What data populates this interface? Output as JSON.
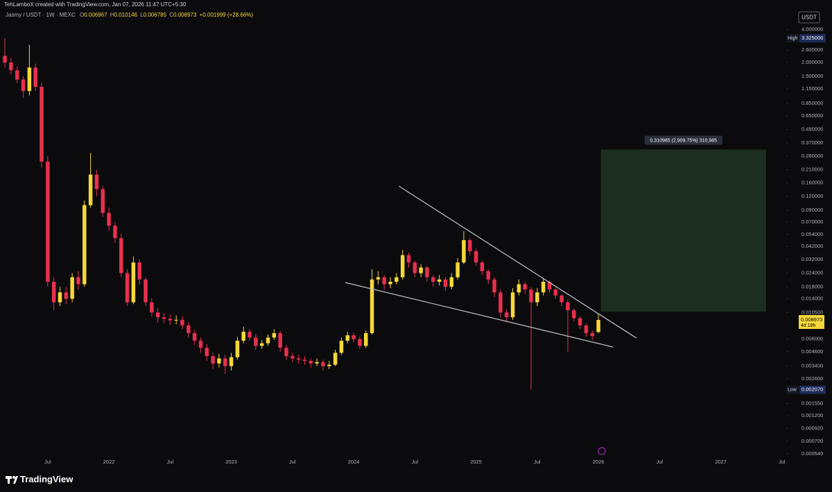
{
  "chart_data": {
    "type": "candlestick",
    "watermark": "TehLamboX created with TradingView.com, Jan 07, 2026 11:47 UTC+5:30",
    "title": "Jasmy / USDT · 1W · MEXC",
    "ohlc_letters": [
      "O",
      "H",
      "L",
      "C"
    ],
    "change_label": "+0.001999 (+28.66%)",
    "currency": "USDT",
    "brand": "TradingView",
    "log_scale": true,
    "grid": false,
    "up_color": "#f7d83a",
    "down_color": "#e8304e",
    "x": [
      2021.15,
      2021.2,
      2021.25,
      2021.3,
      2021.35,
      2021.4,
      2021.45,
      2021.5,
      2021.55,
      2021.6,
      2021.65,
      2021.7,
      2021.75,
      2021.8,
      2021.85,
      2021.9,
      2021.95,
      2022.0,
      2022.05,
      2022.1,
      2022.15,
      2022.2,
      2022.25,
      2022.3,
      2022.35,
      2022.4,
      2022.45,
      2022.5,
      2022.55,
      2022.6,
      2022.65,
      2022.7,
      2022.75,
      2022.8,
      2022.85,
      2022.9,
      2022.95,
      2023.0,
      2023.05,
      2023.1,
      2023.15,
      2023.2,
      2023.25,
      2023.3,
      2023.35,
      2023.4,
      2023.45,
      2023.5,
      2023.55,
      2023.6,
      2023.65,
      2023.7,
      2023.75,
      2023.8,
      2023.85,
      2023.9,
      2023.95,
      2024.0,
      2024.05,
      2024.1,
      2024.15,
      2024.2,
      2024.25,
      2024.3,
      2024.35,
      2024.4,
      2024.45,
      2024.5,
      2024.55,
      2024.6,
      2024.65,
      2024.7,
      2024.75,
      2024.8,
      2024.85,
      2024.9,
      2024.95,
      2025.0,
      2025.05,
      2025.1,
      2025.15,
      2025.2,
      2025.25,
      2025.3,
      2025.35,
      2025.4,
      2025.45,
      2025.5,
      2025.55,
      2025.6,
      2025.65,
      2025.7,
      2025.75,
      2025.8,
      2025.85,
      2025.9,
      2025.95,
      2026.0
    ],
    "open": [
      2.3,
      2.0,
      1.7,
      1.4,
      1.1,
      1.8,
      1.2,
      0.25,
      0.02,
      0.013,
      0.016,
      0.014,
      0.022,
      0.019,
      0.1,
      0.19,
      0.14,
      0.085,
      0.065,
      0.05,
      0.024,
      0.013,
      0.03,
      0.021,
      0.013,
      0.0105,
      0.0095,
      0.0092,
      0.0089,
      0.009,
      0.008,
      0.0068,
      0.0058,
      0.005,
      0.0042,
      0.0036,
      0.004,
      0.0034,
      0.0041,
      0.0058,
      0.007,
      0.0062,
      0.0052,
      0.0055,
      0.0062,
      0.0068,
      0.005,
      0.0042,
      0.004,
      0.0039,
      0.0038,
      0.0036,
      0.0037,
      0.0034,
      0.0035,
      0.0045,
      0.0058,
      0.0065,
      0.006,
      0.0052,
      0.0068,
      0.021,
      0.022,
      0.019,
      0.02,
      0.022,
      0.035,
      0.03,
      0.024,
      0.027,
      0.022,
      0.02,
      0.021,
      0.018,
      0.022,
      0.03,
      0.048,
      0.038,
      0.03,
      0.025,
      0.021,
      0.016,
      0.0105,
      0.0095,
      0.016,
      0.019,
      0.017,
      0.013,
      0.016,
      0.02,
      0.017,
      0.015,
      0.013,
      0.011,
      0.0093,
      0.008,
      0.0068,
      0.006967
    ],
    "high": [
      3.325,
      2.2,
      1.85,
      1.5,
      2.9,
      1.95,
      1.3,
      0.28,
      0.022,
      0.018,
      0.018,
      0.024,
      0.025,
      0.11,
      0.3,
      0.21,
      0.15,
      0.095,
      0.07,
      0.055,
      0.026,
      0.034,
      0.032,
      0.022,
      0.0142,
      0.0115,
      0.0104,
      0.0101,
      0.0099,
      0.0097,
      0.0086,
      0.0073,
      0.0062,
      0.0054,
      0.0045,
      0.0044,
      0.0043,
      0.0045,
      0.0063,
      0.0078,
      0.0074,
      0.0066,
      0.0059,
      0.0066,
      0.0074,
      0.0071,
      0.0053,
      0.0045,
      0.0043,
      0.0042,
      0.004,
      0.004,
      0.0039,
      0.0038,
      0.0048,
      0.0062,
      0.007,
      0.0069,
      0.0063,
      0.0072,
      0.026,
      0.025,
      0.023,
      0.022,
      0.024,
      0.039,
      0.037,
      0.031,
      0.029,
      0.028,
      0.023,
      0.023,
      0.022,
      0.024,
      0.033,
      0.058,
      0.05,
      0.04,
      0.031,
      0.026,
      0.022,
      0.017,
      0.0112,
      0.0175,
      0.021,
      0.02,
      0.018,
      0.0175,
      0.0215,
      0.0205,
      0.0178,
      0.0155,
      0.0138,
      0.0115,
      0.0097,
      0.0083,
      0.0072,
      0.010146
    ],
    "low": [
      1.8,
      1.55,
      1.3,
      0.95,
      1.0,
      1.1,
      0.22,
      0.018,
      0.011,
      0.012,
      0.0125,
      0.013,
      0.017,
      0.018,
      0.095,
      0.12,
      0.078,
      0.058,
      0.045,
      0.022,
      0.012,
      0.0125,
      0.019,
      0.012,
      0.0096,
      0.0085,
      0.0084,
      0.0081,
      0.0082,
      0.0074,
      0.0062,
      0.0053,
      0.0045,
      0.0038,
      0.0032,
      0.0033,
      0.0029,
      0.0031,
      0.0039,
      0.0055,
      0.0058,
      0.0048,
      0.0049,
      0.0052,
      0.0059,
      0.0046,
      0.0039,
      0.0037,
      0.0036,
      0.0035,
      0.0033,
      0.0034,
      0.0031,
      0.0032,
      0.0034,
      0.0043,
      0.0055,
      0.0056,
      0.0049,
      0.005,
      0.0066,
      0.019,
      0.017,
      0.0175,
      0.019,
      0.021,
      0.027,
      0.022,
      0.022,
      0.02,
      0.018,
      0.0185,
      0.0165,
      0.017,
      0.021,
      0.029,
      0.035,
      0.028,
      0.023,
      0.019,
      0.0145,
      0.0095,
      0.0087,
      0.009,
      0.015,
      0.0155,
      0.00207,
      0.012,
      0.015,
      0.0158,
      0.014,
      0.012,
      0.0046,
      0.0087,
      0.0074,
      0.0063,
      0.0059,
      0.006785
    ],
    "close": [
      2.0,
      1.7,
      1.4,
      1.1,
      1.8,
      1.2,
      0.25,
      0.02,
      0.013,
      0.016,
      0.014,
      0.022,
      0.019,
      0.1,
      0.19,
      0.14,
      0.085,
      0.065,
      0.05,
      0.024,
      0.013,
      0.03,
      0.021,
      0.013,
      0.0105,
      0.0095,
      0.0092,
      0.0089,
      0.009,
      0.008,
      0.0068,
      0.0058,
      0.005,
      0.0042,
      0.0036,
      0.004,
      0.0034,
      0.0041,
      0.0058,
      0.007,
      0.0062,
      0.0052,
      0.0055,
      0.0062,
      0.0068,
      0.005,
      0.0042,
      0.004,
      0.0039,
      0.0038,
      0.0036,
      0.0037,
      0.0034,
      0.0035,
      0.0045,
      0.0058,
      0.0065,
      0.006,
      0.0052,
      0.0068,
      0.021,
      0.022,
      0.019,
      0.02,
      0.022,
      0.035,
      0.03,
      0.024,
      0.027,
      0.022,
      0.02,
      0.021,
      0.018,
      0.022,
      0.03,
      0.048,
      0.038,
      0.03,
      0.025,
      0.021,
      0.016,
      0.0105,
      0.0095,
      0.016,
      0.019,
      0.017,
      0.013,
      0.016,
      0.02,
      0.017,
      0.015,
      0.013,
      0.011,
      0.0093,
      0.008,
      0.0068,
      0.0064,
      0.008973
    ],
    "xlim": [
      2021.11,
      2027.535
    ],
    "ylim": [
      0.000397,
      4.8
    ],
    "xticks": [
      {
        "value": 2021.5,
        "label": "Jul"
      },
      {
        "value": 2022,
        "label": "2022"
      },
      {
        "value": 2022.5,
        "label": "Jul"
      },
      {
        "value": 2023,
        "label": "2023"
      },
      {
        "value": 2023.5,
        "label": "Jul"
      },
      {
        "value": 2024,
        "label": "2024"
      },
      {
        "value": 2024.5,
        "label": "Jul"
      },
      {
        "value": 2025,
        "label": "2025"
      },
      {
        "value": 2025.5,
        "label": "Jul"
      },
      {
        "value": 2026,
        "label": "2026"
      },
      {
        "value": 2026.5,
        "label": "Jul"
      },
      {
        "value": 2027,
        "label": "2027"
      },
      {
        "value": 2027.5,
        "label": "Jul"
      }
    ],
    "yticks": [
      {
        "value": 4,
        "label": "4.000000"
      },
      {
        "value": 2.6,
        "label": "2.600000"
      },
      {
        "value": 2,
        "label": "2.000000"
      },
      {
        "value": 1.5,
        "label": "1.500000"
      },
      {
        "value": 1.15,
        "label": "1.150000"
      },
      {
        "value": 0.85,
        "label": "0.850000"
      },
      {
        "value": 0.65,
        "label": "0.650000"
      },
      {
        "value": 0.49,
        "label": "0.490000"
      },
      {
        "value": 0.37,
        "label": "0.370000"
      },
      {
        "value": 0.28,
        "label": "0.280000"
      },
      {
        "value": 0.21,
        "label": "0.210000"
      },
      {
        "value": 0.16,
        "label": "0.160000"
      },
      {
        "value": 0.12,
        "label": "0.120000"
      },
      {
        "value": 0.09,
        "label": "0.090000"
      },
      {
        "value": 0.07,
        "label": "0.070000"
      },
      {
        "value": 0.054,
        "label": "0.054000"
      },
      {
        "value": 0.042,
        "label": "0.042000"
      },
      {
        "value": 0.032,
        "label": "0.032000"
      },
      {
        "value": 0.024,
        "label": "0.024000"
      },
      {
        "value": 0.018,
        "label": "0.018000"
      },
      {
        "value": 0.014,
        "label": "0.014000"
      },
      {
        "value": 0.0105,
        "label": "0.010500"
      },
      {
        "value": 0.006,
        "label": "0.006000"
      },
      {
        "value": 0.0046,
        "label": "0.004600"
      },
      {
        "value": 0.0034,
        "label": "0.003400"
      },
      {
        "value": 0.0026,
        "label": "0.002600"
      },
      {
        "value": 0.00155,
        "label": "0.001550"
      },
      {
        "value": 0.0012,
        "label": "0.001200"
      },
      {
        "value": 0.00092,
        "label": "0.000920"
      },
      {
        "value": 0.0007,
        "label": "0.000700"
      },
      {
        "value": 0.00054,
        "label": "0.000540"
      }
    ],
    "high_marker": {
      "text": "High",
      "value": 3.325,
      "label": "3.325000"
    },
    "low_marker": {
      "text": "Low",
      "value": 0.00207,
      "label": "0.002070"
    },
    "last_price": {
      "value": 0.008973,
      "label": "0.008973",
      "countdown": "4d 18h"
    },
    "projection": {
      "x": [
        2026.02,
        2027.37
      ],
      "base": 0.010688,
      "change": 0.310985,
      "label": "0.310985 (2,909.75%) 310,985",
      "color": "#1c2e1f"
    },
    "trend_lines": [
      {
        "x": [
          2024.37,
          2026.31
        ],
        "y": [
          0.149,
          0.00614
        ]
      },
      {
        "x": [
          2023.93,
          2026.12
        ],
        "y": [
          0.0197,
          0.00508
        ]
      }
    ],
    "trend_color": "#b8bbc2"
  }
}
